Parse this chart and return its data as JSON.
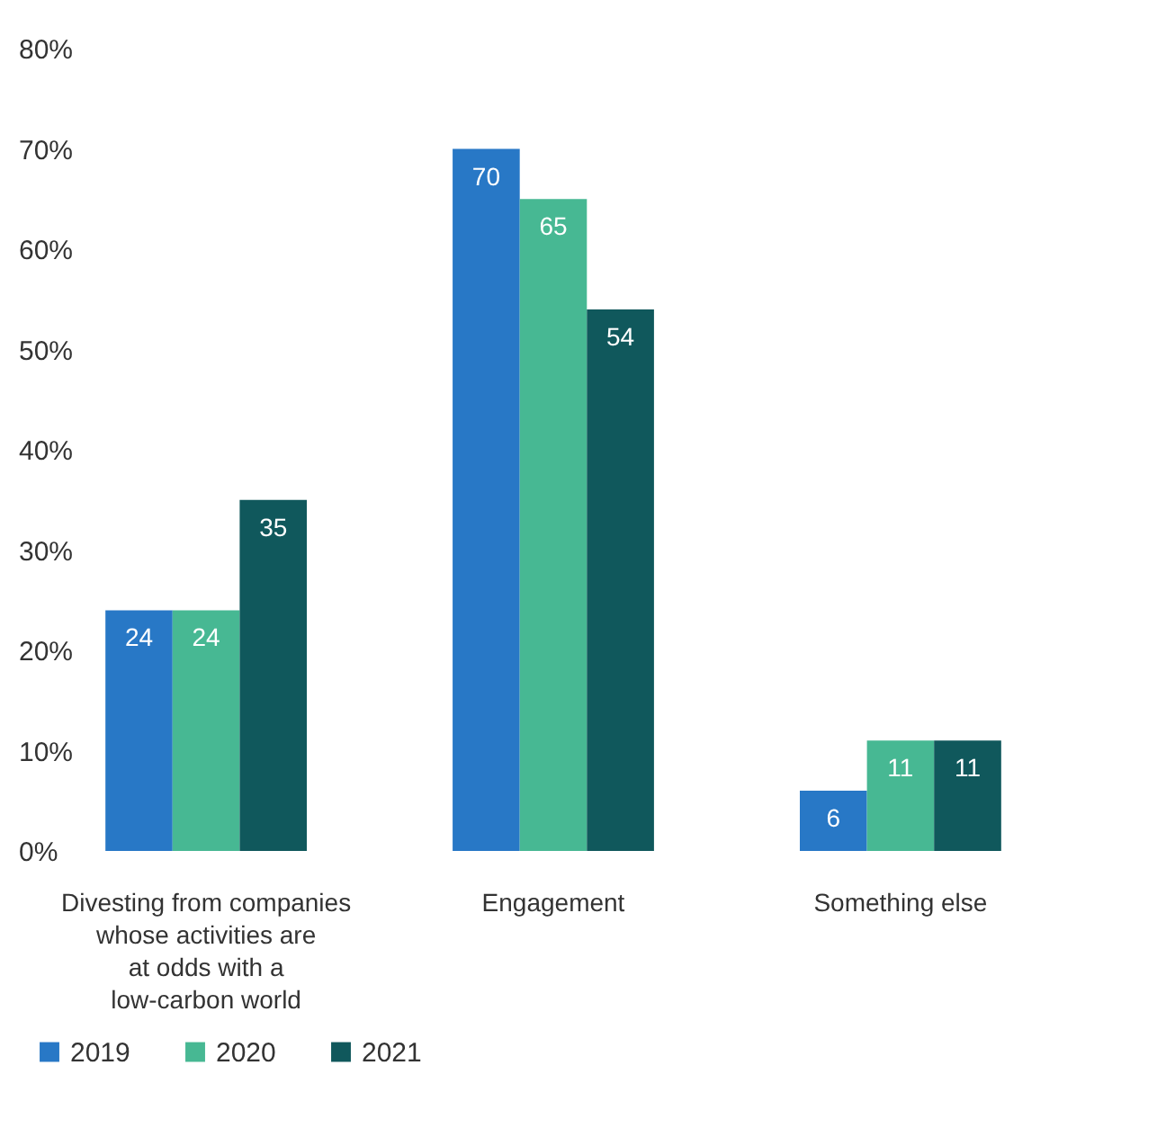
{
  "chart_data": {
    "type": "bar",
    "categories": [
      "Divesting from companies\nwhose activities are\nat odds with a\nlow-carbon world",
      "Engagement",
      "Something else"
    ],
    "series": [
      {
        "name": "2019",
        "color": "#2878c6",
        "values": [
          24,
          70,
          6
        ]
      },
      {
        "name": "2020",
        "color": "#47b893",
        "values": [
          24,
          65,
          11
        ]
      },
      {
        "name": "2021",
        "color": "#10585c",
        "values": [
          35,
          54,
          11
        ]
      }
    ],
    "ylim": [
      0,
      80
    ],
    "yticks": [
      {
        "value": 0,
        "label": "0%"
      },
      {
        "value": 10,
        "label": "10%"
      },
      {
        "value": 20,
        "label": "20%"
      },
      {
        "value": 30,
        "label": "30%"
      },
      {
        "value": 40,
        "label": "40%"
      },
      {
        "value": 50,
        "label": "50%"
      },
      {
        "value": 60,
        "label": "60%"
      },
      {
        "value": 70,
        "label": "70%"
      },
      {
        "value": 80,
        "label": "80%"
      }
    ],
    "data_labels": true,
    "grid": false,
    "legend": "bottom"
  }
}
